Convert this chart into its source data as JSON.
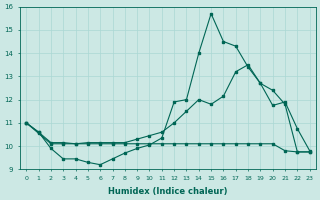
{
  "xlabel": "Humidex (Indice chaleur)",
  "bg_color": "#cce8e4",
  "line_color": "#006655",
  "grid_color": "#aad8d4",
  "xlim": [
    -0.5,
    23.5
  ],
  "ylim": [
    9,
    16
  ],
  "yticks": [
    9,
    10,
    11,
    12,
    13,
    14,
    15,
    16
  ],
  "xticks": [
    0,
    1,
    2,
    3,
    4,
    5,
    6,
    7,
    8,
    9,
    10,
    11,
    12,
    13,
    14,
    15,
    16,
    17,
    18,
    19,
    20,
    21,
    22,
    23
  ],
  "series1_x": [
    0,
    1,
    2,
    3,
    4,
    5,
    6,
    7,
    8,
    9,
    10,
    11,
    12,
    13,
    14,
    15,
    16,
    17,
    18,
    19,
    20,
    21,
    22,
    23
  ],
  "series1_y": [
    11.0,
    10.6,
    9.9,
    9.45,
    9.45,
    9.3,
    9.2,
    9.45,
    9.7,
    9.9,
    10.05,
    10.35,
    11.9,
    12.0,
    14.0,
    15.7,
    14.5,
    14.3,
    13.4,
    12.7,
    11.75,
    11.9,
    10.75,
    9.8
  ],
  "series2_x": [
    0,
    1,
    2,
    3,
    4,
    5,
    6,
    7,
    8,
    9,
    10,
    11,
    12,
    13,
    14,
    15,
    16,
    17,
    18,
    19,
    20,
    21,
    22,
    23
  ],
  "series2_y": [
    11.0,
    10.6,
    10.15,
    10.15,
    10.1,
    10.15,
    10.15,
    10.15,
    10.15,
    10.3,
    10.45,
    10.6,
    11.0,
    11.5,
    12.0,
    11.8,
    12.15,
    13.2,
    13.5,
    12.7,
    12.4,
    11.8,
    9.75,
    9.75
  ],
  "series3_x": [
    0,
    1,
    2,
    3,
    4,
    5,
    6,
    7,
    8,
    9,
    10,
    11,
    12,
    13,
    14,
    15,
    16,
    17,
    18,
    19,
    20,
    21,
    22,
    23
  ],
  "series3_y": [
    11.0,
    10.55,
    10.1,
    10.1,
    10.1,
    10.1,
    10.1,
    10.1,
    10.1,
    10.1,
    10.1,
    10.1,
    10.1,
    10.1,
    10.1,
    10.1,
    10.1,
    10.1,
    10.1,
    10.1,
    10.1,
    9.8,
    9.75,
    9.75
  ]
}
